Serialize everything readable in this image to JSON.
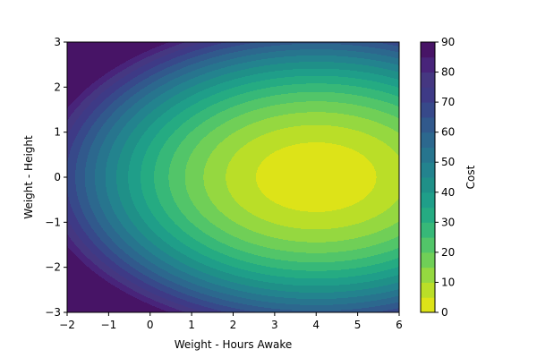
{
  "chart_data": {
    "type": "contourf",
    "xlabel": "Weight - Hours Awake",
    "ylabel": "Weight - Height",
    "colorbar_label": "Cost",
    "xlim": [
      -2,
      6
    ],
    "ylim": [
      -3,
      3
    ],
    "x_ticks": [
      -2,
      -1,
      0,
      1,
      2,
      3,
      4,
      5,
      6
    ],
    "x_tick_labels": [
      "−2",
      "−1",
      "0",
      "1",
      "2",
      "3",
      "4",
      "5",
      "6"
    ],
    "y_ticks": [
      -3,
      -2,
      -1,
      0,
      1,
      2,
      3
    ],
    "y_tick_labels": [
      "−3",
      "−2",
      "−1",
      "0",
      "1",
      "2",
      "3"
    ],
    "levels": [
      0,
      5,
      10,
      15,
      20,
      25,
      30,
      35,
      40,
      45,
      50,
      55,
      60,
      65,
      70,
      75,
      80,
      85,
      90
    ],
    "colorbar_ticks": [
      0,
      10,
      20,
      30,
      40,
      50,
      60,
      70,
      80,
      90
    ],
    "colorbar_tick_labels": [
      "0",
      "10",
      "20",
      "30",
      "40",
      "50",
      "60",
      "70",
      "80",
      "90"
    ],
    "minimum": {
      "x": 4,
      "y": 0,
      "cost": 1
    },
    "colormap": "viridis_r",
    "colors": [
      "#dde318",
      "#bade28",
      "#95d840",
      "#70cf57",
      "#52c569",
      "#37b878",
      "#25ab82",
      "#1f9e89",
      "#1f9088",
      "#23838e",
      "#27758e",
      "#2c688e",
      "#31598c",
      "#37498a",
      "#3e3a86",
      "#453781",
      "#48247a",
      "#471466",
      "#2a0f3c"
    ]
  }
}
